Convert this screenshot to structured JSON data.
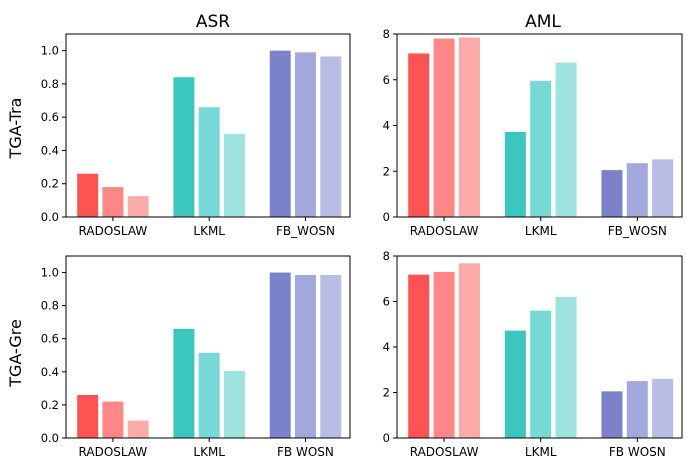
{
  "colors": {
    "RADOSLAW": [
      "#fd5353",
      "#fd8787",
      "#fdaaaa"
    ],
    "LKML": [
      "#3bc6c0",
      "#76d9d6",
      "#9de3e0"
    ],
    "FB_WOSN": [
      "#7b82c9",
      "#a3a8dc",
      "#b9bce4"
    ]
  },
  "chart_data": [
    {
      "type": "bar",
      "title": "ASR",
      "ylabel": "TGA-Tra",
      "categories": [
        "RADOSLAW",
        "LKML",
        "FB_WOSN"
      ],
      "values": [
        [
          0.26,
          0.18,
          0.125
        ],
        [
          0.84,
          0.66,
          0.5
        ],
        [
          1.0,
          0.99,
          0.965
        ]
      ],
      "ylim": [
        0,
        1.1
      ],
      "yticks": [
        "0.0",
        "0.2",
        "0.4",
        "0.6",
        "0.8",
        "1.0"
      ],
      "ytick_values": [
        0,
        0.2,
        0.4,
        0.6,
        0.8,
        1.0
      ]
    },
    {
      "type": "bar",
      "title": "AML",
      "ylabel": "",
      "categories": [
        "RADOSLAW",
        "LKML",
        "FB_WOSN"
      ],
      "values": [
        [
          7.15,
          7.8,
          7.85
        ],
        [
          3.72,
          5.95,
          6.75
        ],
        [
          2.05,
          2.35,
          2.52
        ]
      ],
      "ylim": [
        0,
        8
      ],
      "yticks": [
        "0",
        "2",
        "4",
        "6",
        "8"
      ],
      "ytick_values": [
        0,
        2,
        4,
        6,
        8
      ]
    },
    {
      "type": "bar",
      "title": "",
      "ylabel": "TGA-Gre",
      "categories": [
        "RADOSLAW",
        "LKML",
        "FB  WOSN"
      ],
      "values": [
        [
          0.26,
          0.22,
          0.105
        ],
        [
          0.66,
          0.515,
          0.405
        ],
        [
          1.0,
          0.985,
          0.985
        ]
      ],
      "ylim": [
        0,
        1.1
      ],
      "yticks": [
        "0.0",
        "0.2",
        "0.4",
        "0.6",
        "0.8",
        "1.0"
      ],
      "ytick_values": [
        0,
        0.2,
        0.4,
        0.6,
        0.8,
        1.0
      ]
    },
    {
      "type": "bar",
      "title": "",
      "ylabel": "",
      "categories": [
        "RADOSLAW",
        "LKML",
        "FB  WOSN"
      ],
      "values": [
        [
          7.18,
          7.3,
          7.68
        ],
        [
          4.72,
          5.6,
          6.2
        ],
        [
          2.05,
          2.5,
          2.6
        ]
      ],
      "ylim": [
        0,
        8
      ],
      "yticks": [
        "0",
        "2",
        "4",
        "6",
        "8"
      ],
      "ytick_values": [
        0,
        2,
        4,
        6,
        8
      ]
    }
  ]
}
